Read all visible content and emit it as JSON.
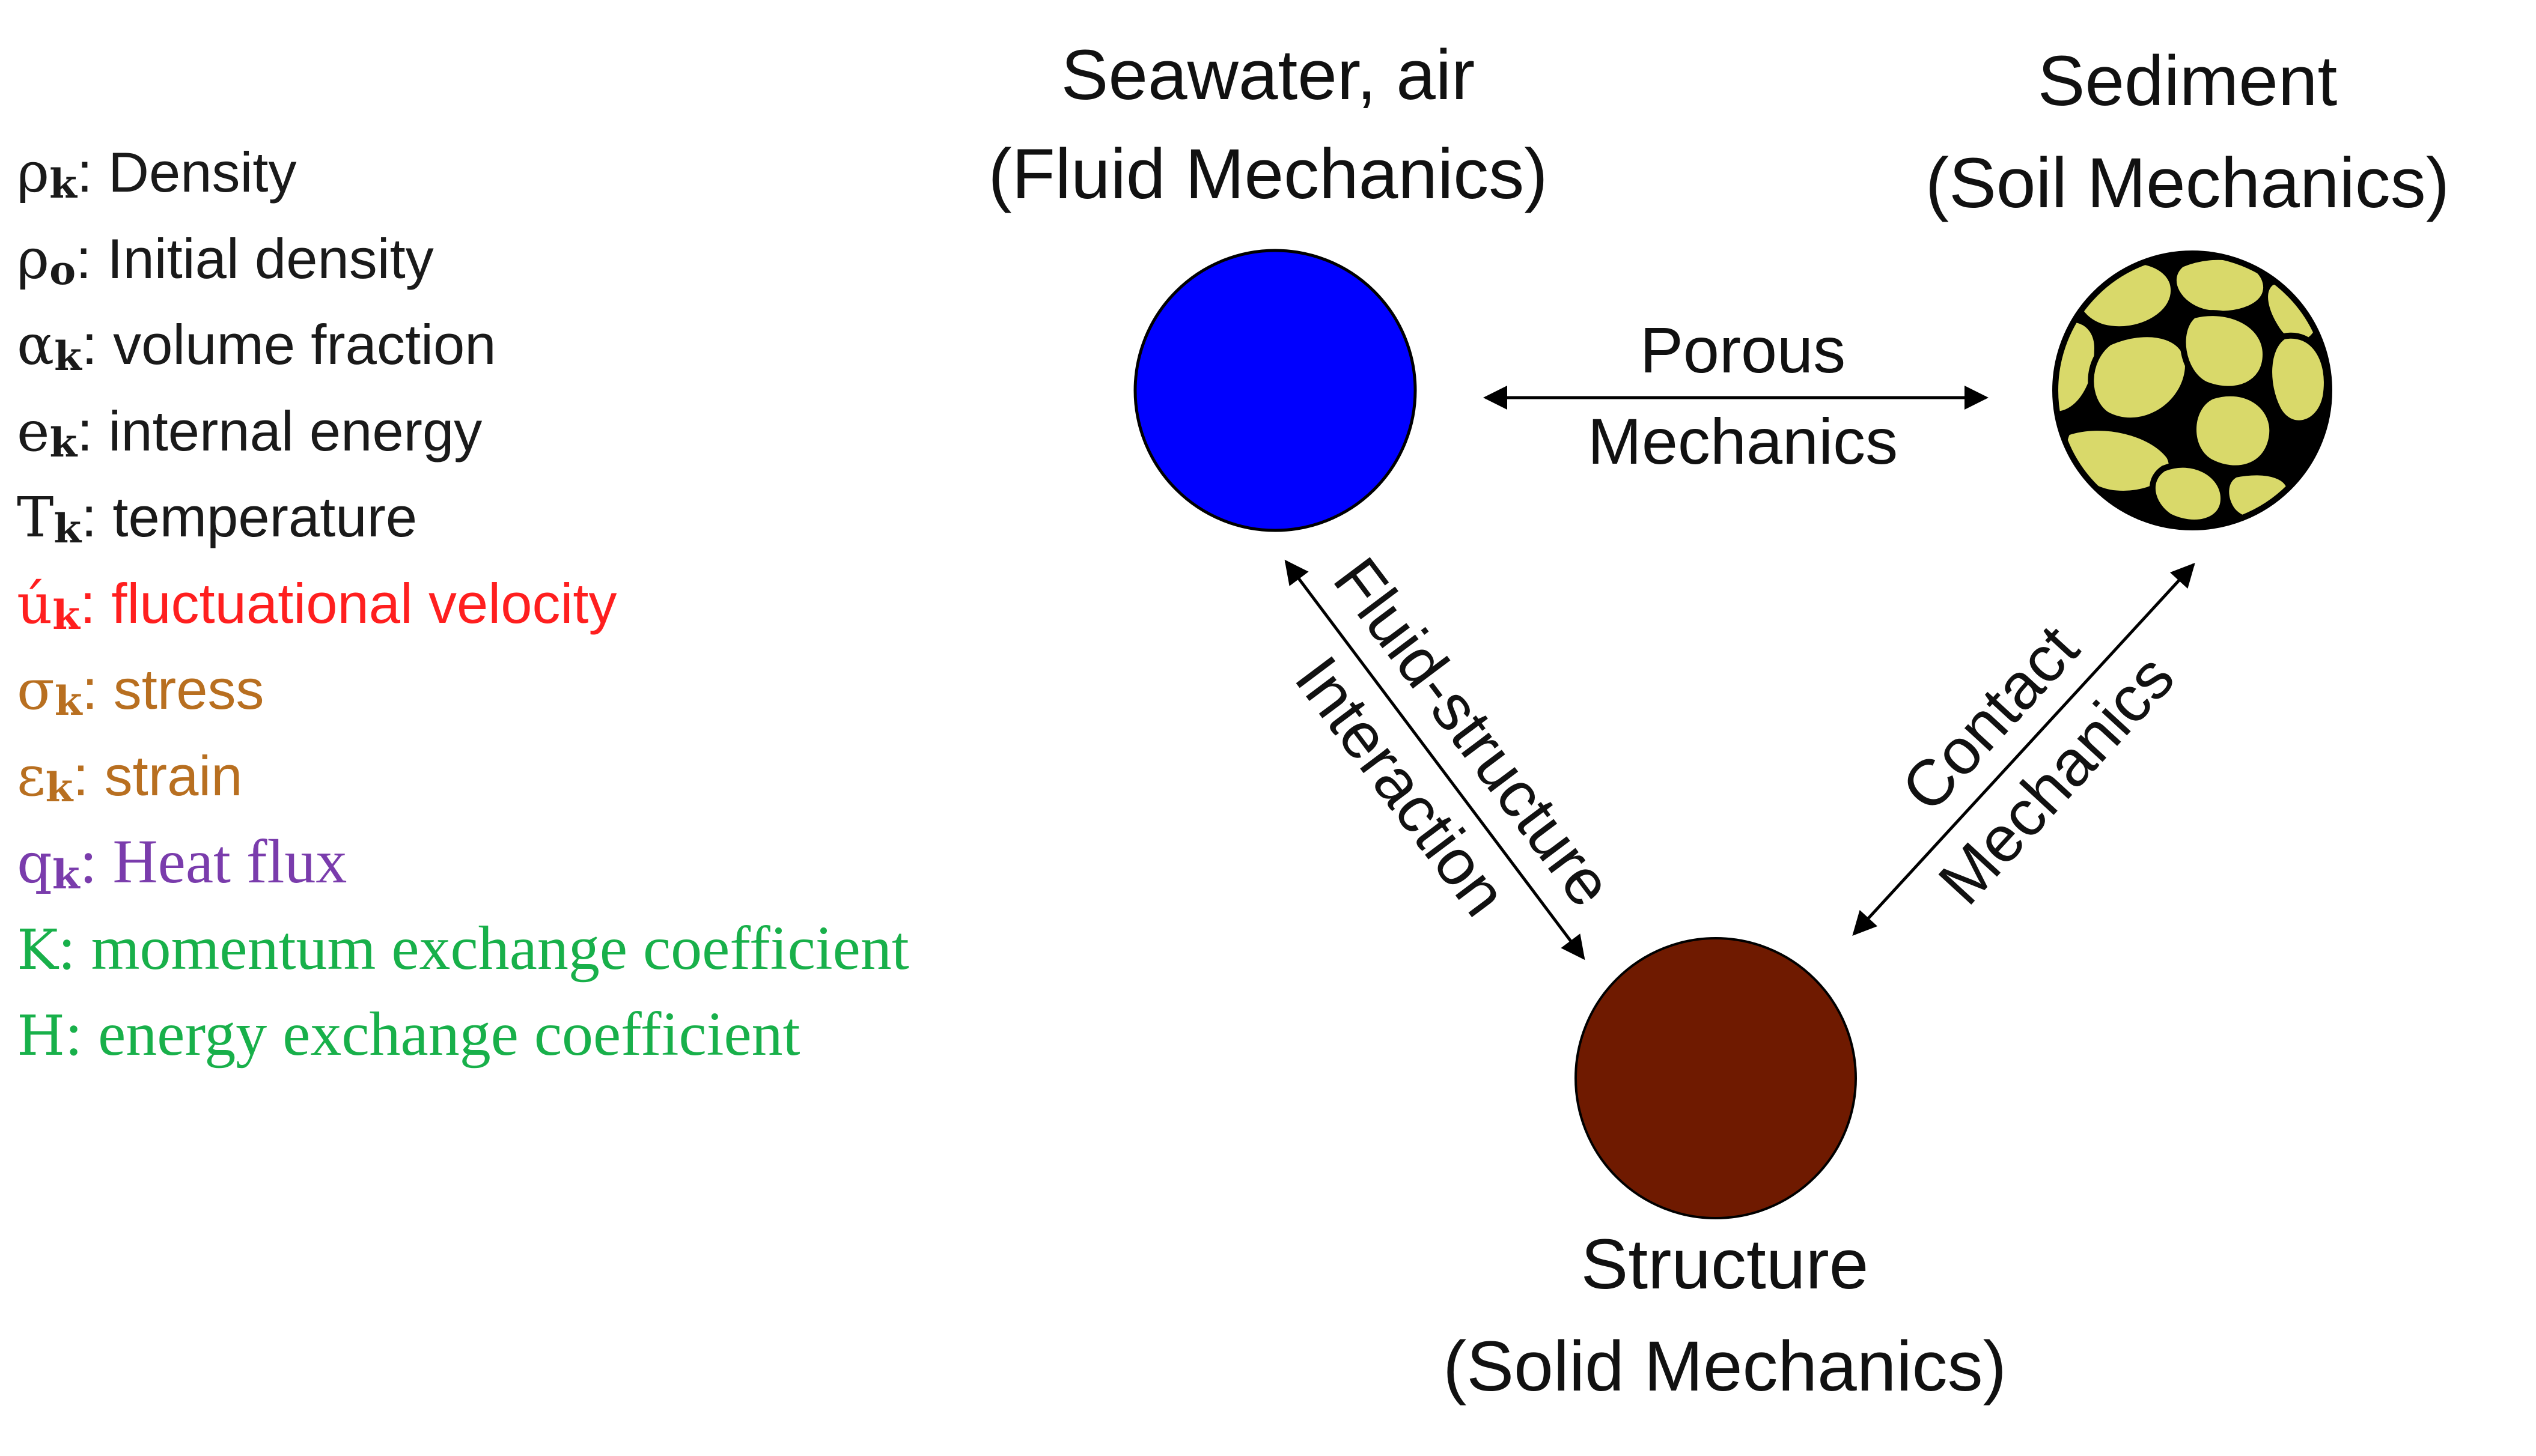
{
  "legend": [
    {
      "symbol": "ρ",
      "sub": "k",
      "sep": ":",
      "text": " Density",
      "color": "#1a1a1a",
      "font": "sans"
    },
    {
      "symbol": "ρ",
      "sub": "o",
      "sep": ":",
      "text": " Initial density",
      "color": "#1a1a1a",
      "font": "sans"
    },
    {
      "symbol": "α",
      "sub": "k",
      "sep": ":",
      "text": " volume fraction",
      "color": "#1a1a1a",
      "font": "sans"
    },
    {
      "symbol": "e",
      "sub": "k",
      "sep": ":",
      "text": " internal energy",
      "color": "#1a1a1a",
      "font": "sans"
    },
    {
      "symbol": "T",
      "sub": "k",
      "sep": ":",
      "text": " temperature",
      "color": "#1a1a1a",
      "font": "sans"
    },
    {
      "symbol": "ú",
      "sub": "k",
      "sep": ":",
      "text": " fluctuational velocity",
      "color": "#ff1f1f",
      "font": "sans"
    },
    {
      "symbol": "σ",
      "sub": "k",
      "sep": ":",
      "text": " stress",
      "color": "#b86f20",
      "font": "sans"
    },
    {
      "symbol": "ε",
      "sub": "k",
      "sep": ":",
      "text": " strain",
      "color": "#b86f20",
      "font": "sans"
    },
    {
      "symbol": "q",
      "sub": "k",
      "sep": ":",
      "text": " Heat flux",
      "color": "#7a3cac",
      "font": "serif"
    },
    {
      "symbol": "K",
      "sub": "",
      "sep": ":",
      "text": " momentum exchange coefficient",
      "color": "#18b04a",
      "font": "serif"
    },
    {
      "symbol": "H",
      "sub": "",
      "sep": ":",
      "text": " energy exchange coefficient",
      "color": "#18b04a",
      "font": "serif"
    }
  ],
  "nodes": {
    "fluid": {
      "title": "Seawater, air",
      "subtitle": "(Fluid Mechanics)",
      "color": "#0000ff"
    },
    "soil": {
      "title": "Sediment",
      "subtitle": "(Soil Mechanics)",
      "color": "#d9d96a"
    },
    "solid": {
      "title": "Structure",
      "subtitle": "(Solid Mechanics)",
      "color": "#6f1a00"
    }
  },
  "links": {
    "porous": {
      "line1": "Porous",
      "line2": "Mechanics"
    },
    "fsi": {
      "line1": "Fluid-structure",
      "line2": "Interaction"
    },
    "contact": {
      "line1": "Contact",
      "line2": "Mechanics"
    }
  }
}
